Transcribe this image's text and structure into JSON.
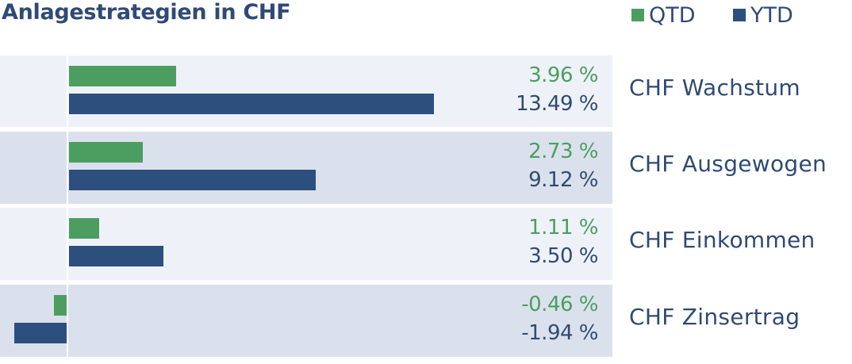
{
  "colors": {
    "qtd": "#4c9e60",
    "ytd": "#2c4f7e",
    "text": "#2f4a75",
    "row_light": "#eef2f8",
    "row_dark": "#dbe1ec"
  },
  "chart_data": {
    "type": "bar",
    "orientation": "horizontal",
    "title": "Anlagestrategien in CHF",
    "legend": [
      "QTD",
      "YTD"
    ],
    "legend_position": "top-right",
    "categories": [
      "CHF Wachstum",
      "CHF Ausgewogen",
      "CHF Einkommen",
      "CHF Zinsertrag"
    ],
    "series": [
      {
        "name": "QTD",
        "values": [
          3.96,
          2.73,
          1.11,
          -0.46
        ],
        "labels": [
          "3.96 %",
          "2.73 %",
          "1.11 %",
          "-0.46 %"
        ]
      },
      {
        "name": "YTD",
        "values": [
          13.49,
          9.12,
          3.5,
          -1.94
        ],
        "labels": [
          "13.49 %",
          "9.12 %",
          "3.50 %",
          "-1.94 %"
        ]
      }
    ],
    "unit": "%",
    "xlabel": "",
    "ylabel": ""
  }
}
